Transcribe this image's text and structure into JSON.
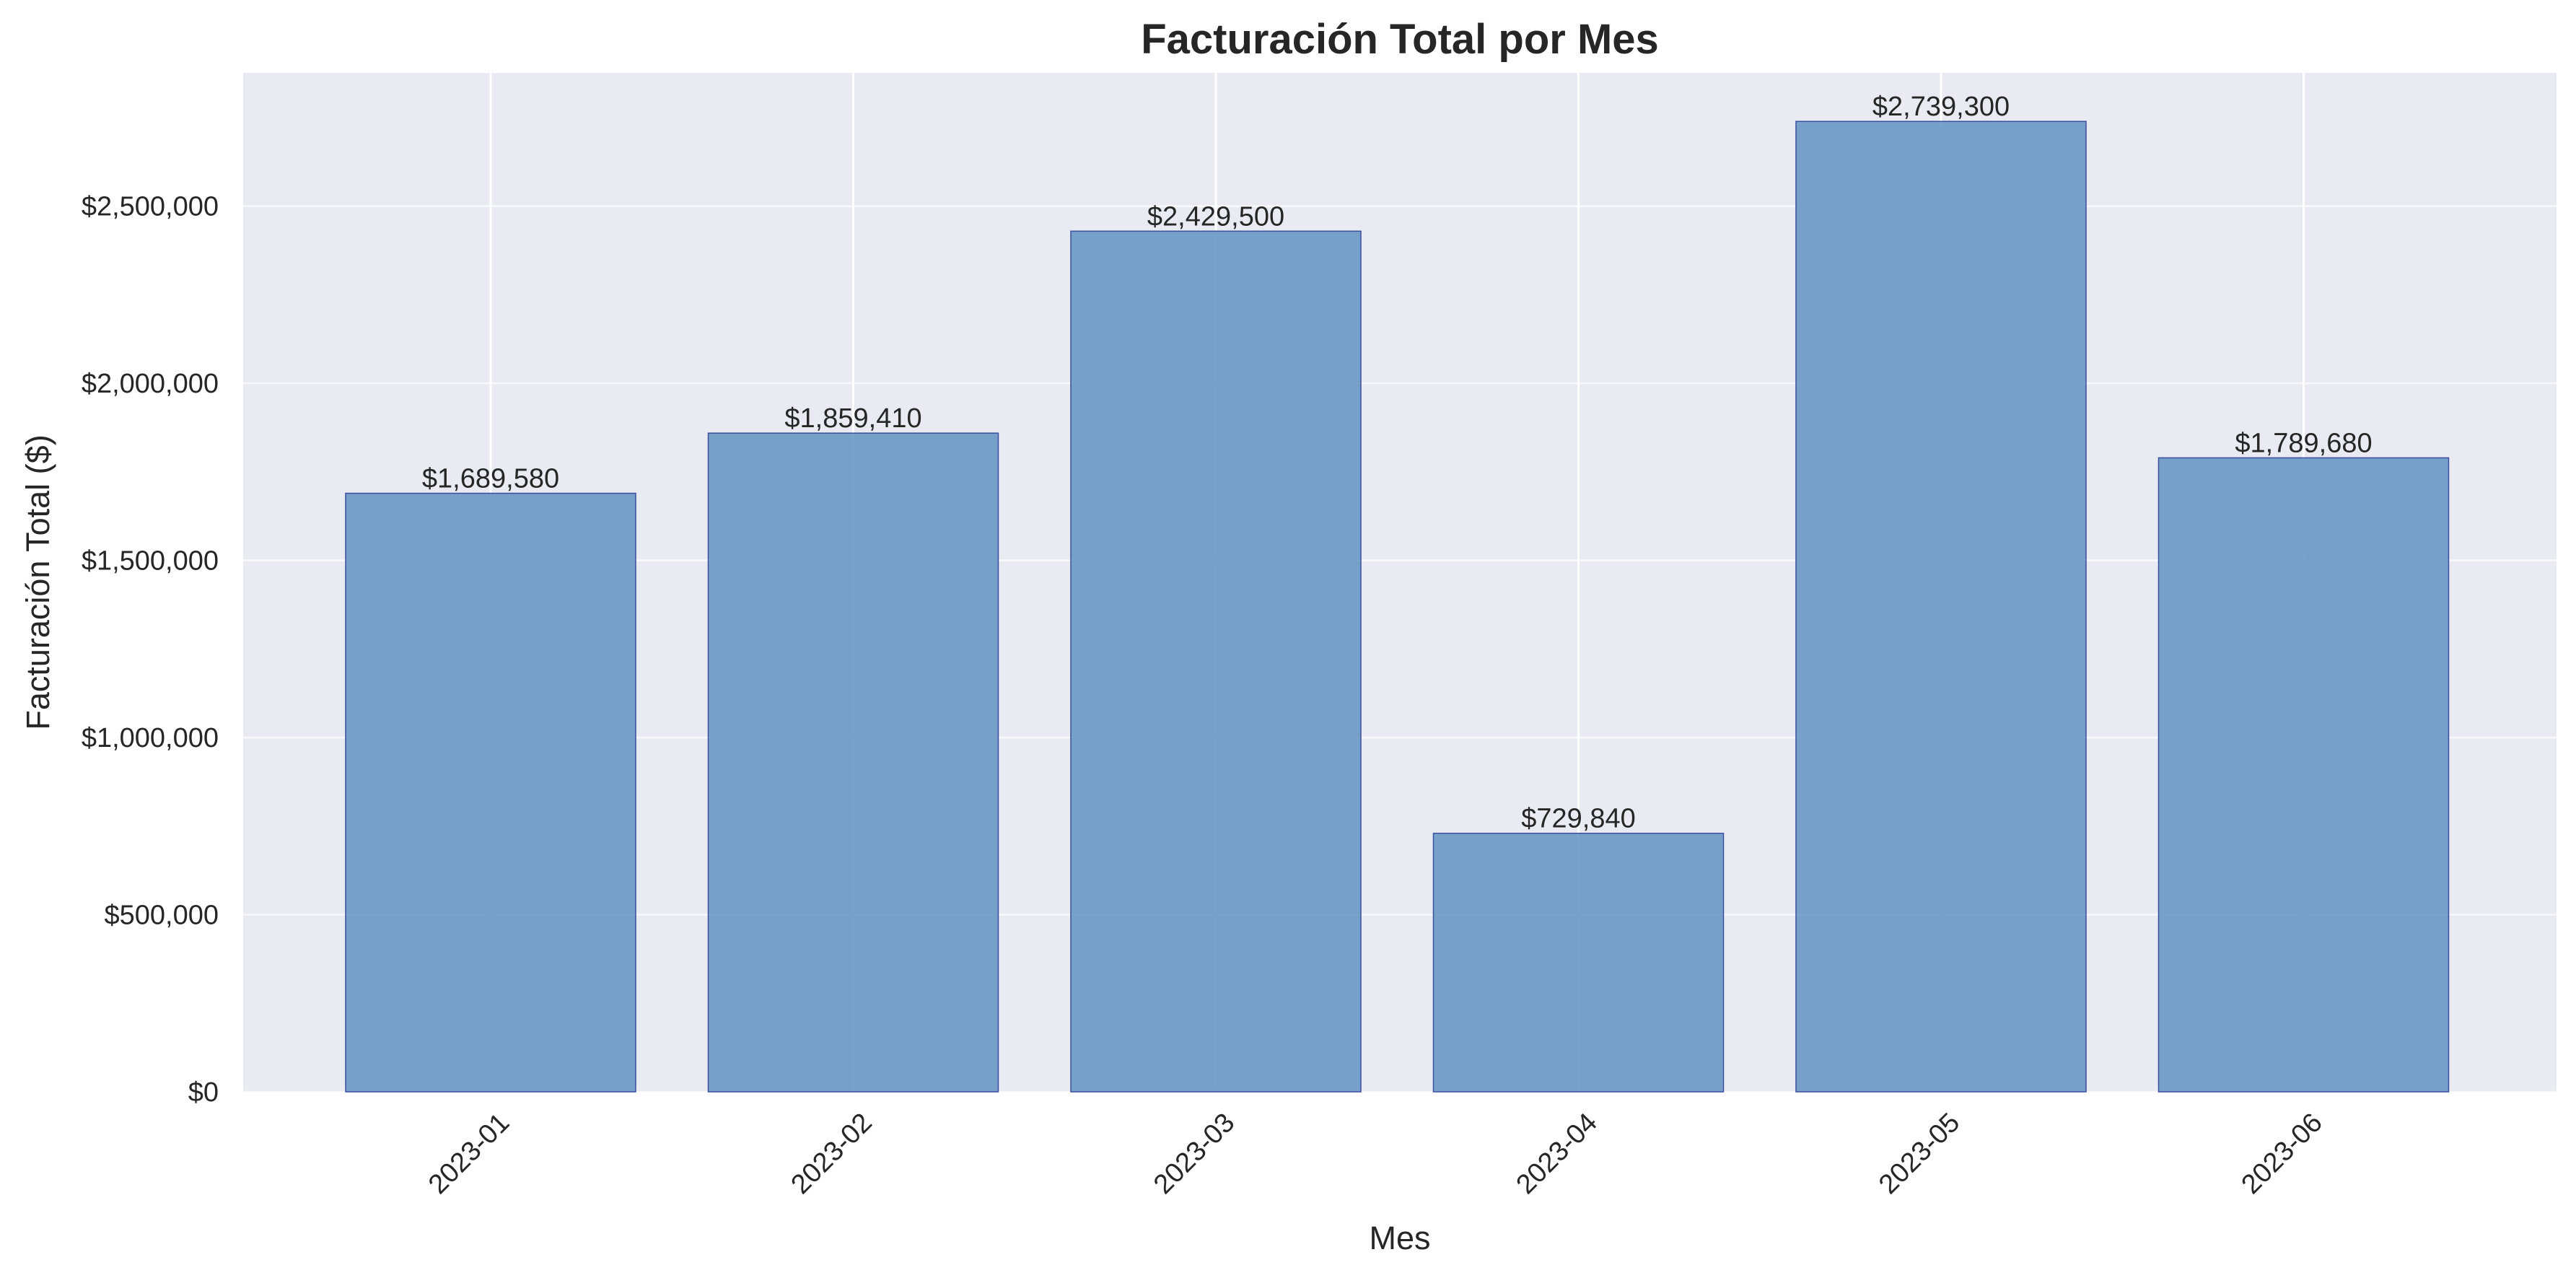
{
  "chart_data": {
    "type": "bar",
    "title": "Facturación Total por Mes",
    "xlabel": "Mes",
    "ylabel": "Facturación Total ($)",
    "categories": [
      "2023-01",
      "2023-02",
      "2023-03",
      "2023-04",
      "2023-05",
      "2023-06"
    ],
    "values": [
      1689580,
      1859410,
      2429500,
      729840,
      2739300,
      1789680
    ],
    "data_labels": [
      "$1,689,580",
      "$1,859,410",
      "$2,429,500",
      "$729,840",
      "$2,739,300",
      "$1,789,680"
    ],
    "yticks": [
      0,
      500000,
      1000000,
      1500000,
      2000000,
      2500000
    ],
    "ytick_labels": [
      "$0",
      "$500,000",
      "$1,000,000",
      "$1,500,000",
      "$2,000,000",
      "$2,500,000"
    ],
    "ylim": [
      0,
      2876265
    ],
    "grid": true,
    "x_tick_rotation_deg": 45,
    "colors": {
      "background": "#eaeaf2",
      "bar_fill": "#6a98c4",
      "bar_edge": "#3a4fa0",
      "grid": "#ffffff",
      "text": "#262626"
    }
  }
}
